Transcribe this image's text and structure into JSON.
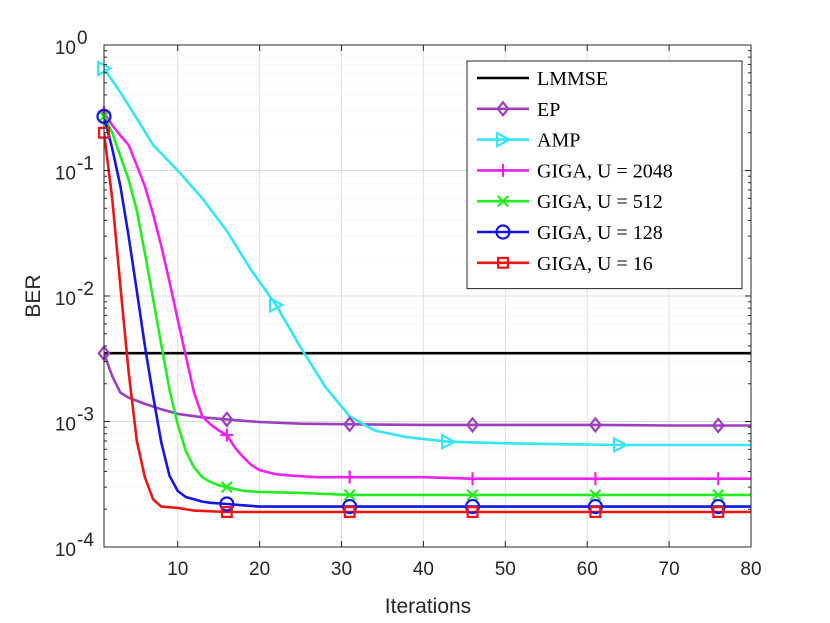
{
  "chart_data": {
    "type": "line",
    "yscale": "log",
    "xlabel": "Iterations",
    "ylabel": "BER",
    "xlim": [
      1,
      80
    ],
    "ylim": [
      0.0001,
      1
    ],
    "xticks": [
      10,
      20,
      30,
      40,
      50,
      60,
      70,
      80
    ],
    "xtick_labels": [
      "10",
      "20",
      "30",
      "40",
      "50",
      "60",
      "70",
      "80"
    ],
    "ytick_labels": [
      {
        "base": "10",
        "exp": "0",
        "value": 1
      },
      {
        "base": "10",
        "exp": "-1",
        "value": 0.1
      },
      {
        "base": "10",
        "exp": "-2",
        "value": 0.01
      },
      {
        "base": "10",
        "exp": "-3",
        "value": 0.001
      },
      {
        "base": "10",
        "exp": "-4",
        "value": 0.0001
      }
    ],
    "grid": true,
    "legend_position": "top-right",
    "series": [
      {
        "name": "LMMSE",
        "color": "#000000",
        "marker": "none",
        "x": [
          1,
          80
        ],
        "y": [
          0.0035,
          0.0035
        ],
        "marker_x": []
      },
      {
        "name": "EP",
        "color": "#9b3fbf",
        "marker": "diamond",
        "x": [
          1,
          2,
          3,
          4,
          6,
          8,
          10,
          13,
          16,
          20,
          25,
          31,
          40,
          46,
          55,
          61,
          70,
          76,
          80
        ],
        "y": [
          0.0035,
          0.0023,
          0.0017,
          0.00155,
          0.00138,
          0.00125,
          0.00115,
          0.00108,
          0.00104,
          0.00099,
          0.00096,
          0.00095,
          0.00094,
          0.00094,
          0.00094,
          0.00094,
          0.00093,
          0.00093,
          0.00093
        ],
        "marker_x": [
          1,
          16,
          31,
          46,
          61,
          76
        ]
      },
      {
        "name": "AMP",
        "color": "#33e6f2",
        "marker": "triangle-right",
        "x": [
          1,
          3,
          5,
          7,
          10,
          13,
          16,
          19,
          22,
          25,
          28,
          31,
          34,
          38,
          43,
          50,
          56,
          64,
          72,
          80
        ],
        "y": [
          0.65,
          0.42,
          0.26,
          0.16,
          0.1,
          0.06,
          0.033,
          0.016,
          0.0085,
          0.0039,
          0.0019,
          0.0011,
          0.00085,
          0.00075,
          0.00069,
          0.00067,
          0.00066,
          0.00065,
          0.00065,
          0.00065
        ],
        "marker_x": [
          1,
          22,
          43,
          64
        ]
      },
      {
        "name": "GIGA, U = 2048",
        "color": "#f020f0",
        "marker": "plus",
        "x": [
          1,
          2,
          3,
          4,
          5,
          6,
          7,
          8,
          9,
          10,
          11,
          12,
          13,
          14,
          15,
          16,
          17,
          18,
          19,
          20,
          22,
          24,
          27,
          31,
          40,
          46,
          61,
          76,
          80
        ],
        "y": [
          0.29,
          0.23,
          0.19,
          0.16,
          0.11,
          0.075,
          0.045,
          0.025,
          0.013,
          0.0065,
          0.0033,
          0.0017,
          0.0011,
          0.00095,
          0.00085,
          0.00078,
          0.00062,
          0.00052,
          0.00045,
          0.00041,
          0.00038,
          0.00037,
          0.00036,
          0.00036,
          0.00036,
          0.00035,
          0.00035,
          0.00035,
          0.00035
        ],
        "marker_x": [
          1,
          16,
          31,
          46,
          61,
          76
        ]
      },
      {
        "name": "GIGA, U = 512",
        "color": "#22ee22",
        "marker": "x",
        "x": [
          1,
          2,
          3,
          4,
          5,
          6,
          7,
          8,
          9,
          10,
          11,
          12,
          13,
          14,
          15,
          16,
          18,
          20,
          25,
          31,
          46,
          61,
          76,
          80
        ],
        "y": [
          0.27,
          0.2,
          0.13,
          0.085,
          0.048,
          0.022,
          0.0095,
          0.0041,
          0.0018,
          0.00095,
          0.00058,
          0.00043,
          0.00036,
          0.00033,
          0.00031,
          0.0003,
          0.00028,
          0.000275,
          0.00027,
          0.00026,
          0.00026,
          0.00026,
          0.00026,
          0.00026
        ],
        "marker_x": [
          1,
          16,
          31,
          46,
          61,
          76
        ]
      },
      {
        "name": "GIGA, U = 128",
        "color": "#1414e6",
        "marker": "circle",
        "x": [
          1,
          2,
          3,
          4,
          5,
          6,
          7,
          8,
          9,
          10,
          11,
          12,
          13,
          14,
          16,
          18,
          20,
          25,
          31,
          46,
          61,
          76,
          80
        ],
        "y": [
          0.27,
          0.15,
          0.075,
          0.03,
          0.011,
          0.004,
          0.0016,
          0.00068,
          0.00037,
          0.00028,
          0.00025,
          0.00024,
          0.00023,
          0.000225,
          0.00022,
          0.000215,
          0.00021,
          0.00021,
          0.00021,
          0.00021,
          0.00021,
          0.00021,
          0.00021
        ],
        "marker_x": [
          1,
          16,
          31,
          46,
          61,
          76
        ]
      },
      {
        "name": "GIGA, U = 16",
        "color": "#ee1414",
        "marker": "square",
        "x": [
          1,
          2,
          3,
          4,
          5,
          6,
          7,
          8,
          10,
          12,
          16,
          20,
          31,
          46,
          61,
          76,
          80
        ],
        "y": [
          0.2,
          0.06,
          0.012,
          0.0025,
          0.0007,
          0.00036,
          0.00024,
          0.00021,
          0.000205,
          0.000195,
          0.00019,
          0.00019,
          0.00019,
          0.00019,
          0.00019,
          0.00019,
          0.00019
        ],
        "marker_x": [
          1,
          16,
          31,
          46,
          61,
          76
        ]
      }
    ]
  }
}
